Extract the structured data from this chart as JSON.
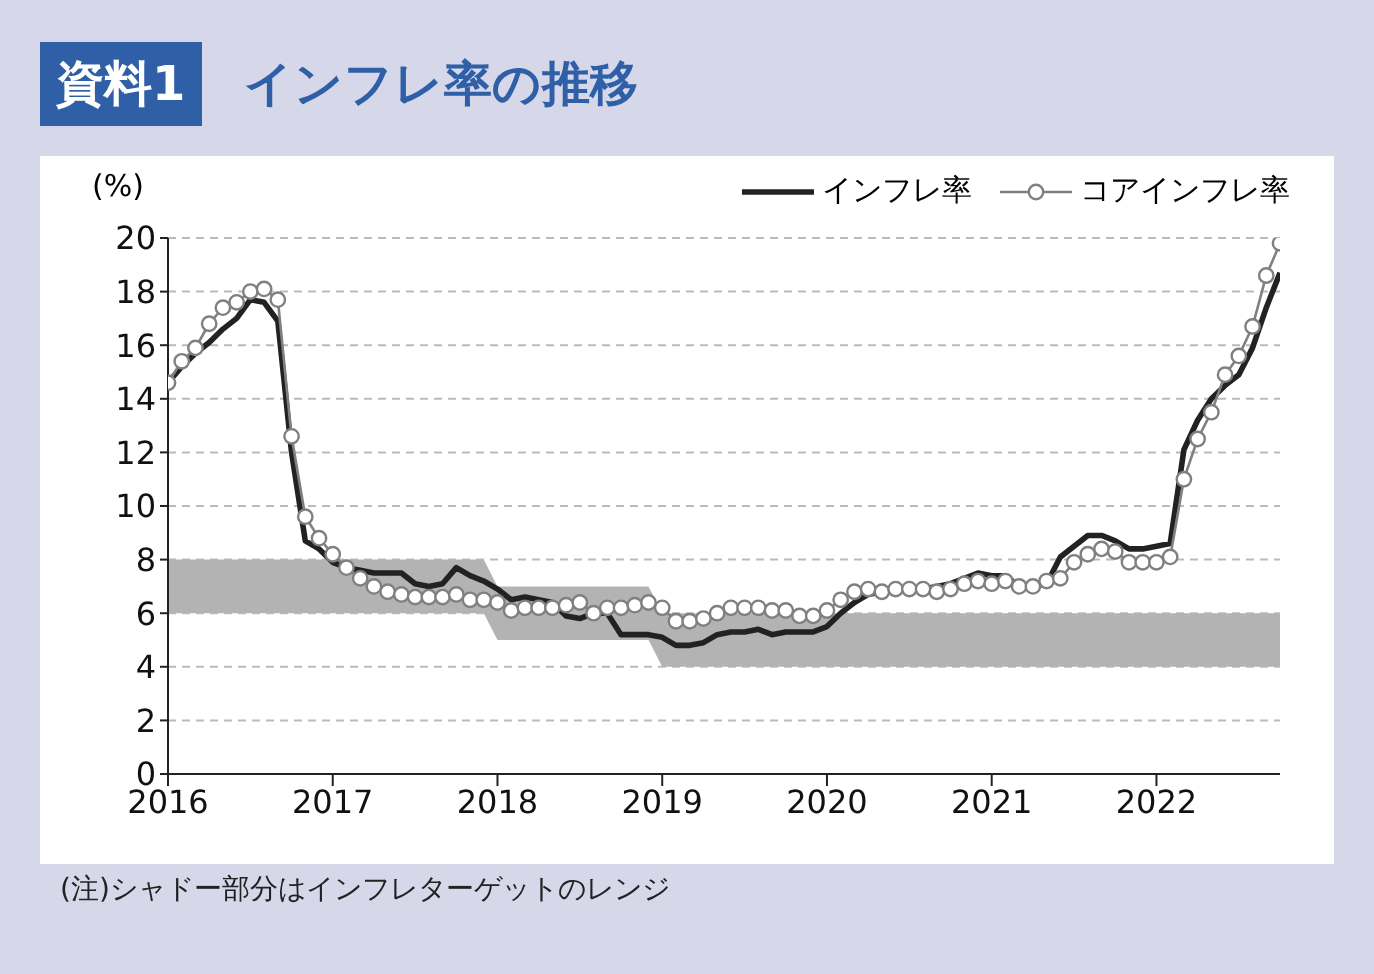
{
  "chart_data": {
    "type": "line",
    "title": "インフレ率の推移",
    "ylabel": "(%)",
    "annotations": [
      "資料1",
      "(注)シャドー部分はインフレターゲットのレンジ"
    ],
    "x": [
      "2016-01",
      "2016-02",
      "2016-03",
      "2016-04",
      "2016-05",
      "2016-06",
      "2016-07",
      "2016-08",
      "2016-09",
      "2016-10",
      "2016-11",
      "2016-12",
      "2017-01",
      "2017-02",
      "2017-03",
      "2017-04",
      "2017-05",
      "2017-06",
      "2017-07",
      "2017-08",
      "2017-09",
      "2017-10",
      "2017-11",
      "2017-12",
      "2018-01",
      "2018-02",
      "2018-03",
      "2018-04",
      "2018-05",
      "2018-06",
      "2018-07",
      "2018-08",
      "2018-09",
      "2018-10",
      "2018-11",
      "2018-12",
      "2019-01",
      "2019-02",
      "2019-03",
      "2019-04",
      "2019-05",
      "2019-06",
      "2019-07",
      "2019-08",
      "2019-09",
      "2019-10",
      "2019-11",
      "2019-12",
      "2020-01",
      "2020-02",
      "2020-03",
      "2020-04",
      "2020-05",
      "2020-06",
      "2020-07",
      "2020-08",
      "2020-09",
      "2020-10",
      "2020-11",
      "2020-12",
      "2021-01",
      "2021-02",
      "2021-03",
      "2021-04",
      "2021-05",
      "2021-06",
      "2021-07",
      "2021-08",
      "2021-09",
      "2021-10",
      "2021-11",
      "2021-12",
      "2022-01",
      "2022-02",
      "2022-03",
      "2022-04",
      "2022-05",
      "2022-06",
      "2022-07",
      "2022-08",
      "2022-09",
      "2022-10"
    ],
    "series": [
      {
        "type": "area",
        "color": "#b3b3b3",
        "values": [
          null,
          null,
          null,
          null,
          null,
          null,
          null,
          null,
          null,
          null,
          null,
          null,
          null,
          null,
          null,
          null,
          null,
          null,
          null,
          null,
          null,
          null,
          null,
          null,
          null,
          null,
          null,
          null,
          null,
          null,
          null,
          null,
          null,
          null,
          null,
          null,
          null,
          null,
          null,
          null,
          null,
          null,
          null,
          null,
          null,
          null,
          null,
          null,
          null,
          null,
          null,
          null,
          null,
          null,
          null,
          null,
          null,
          null,
          null,
          null,
          null,
          null,
          null,
          null,
          null,
          null,
          null,
          null,
          null,
          null,
          null,
          null,
          null,
          null,
          null,
          null,
          null,
          null,
          null,
          null,
          null,
          null
        ],
        "lower": [
          6,
          6,
          6,
          6,
          6,
          6,
          6,
          6,
          6,
          6,
          6,
          6,
          6,
          6,
          6,
          6,
          6,
          6,
          6,
          6,
          6,
          6,
          6,
          6,
          5,
          5,
          5,
          5,
          5,
          5,
          5,
          5,
          5,
          5,
          5,
          5,
          4,
          4,
          4,
          4,
          4,
          4,
          4,
          4,
          4,
          4,
          4,
          4,
          4,
          4,
          4,
          4,
          4,
          4,
          4,
          4,
          4,
          4,
          4,
          4,
          4,
          4,
          4,
          4,
          4,
          4,
          4,
          4,
          4,
          4,
          4,
          4,
          4,
          4,
          4,
          4,
          4,
          4,
          4,
          4,
          4,
          4
        ],
        "upper": [
          8,
          8,
          8,
          8,
          8,
          8,
          8,
          8,
          8,
          8,
          8,
          8,
          8,
          8,
          8,
          8,
          8,
          8,
          8,
          8,
          8,
          8,
          8,
          8,
          7,
          7,
          7,
          7,
          7,
          7,
          7,
          7,
          7,
          7,
          7,
          7,
          6,
          6,
          6,
          6,
          6,
          6,
          6,
          6,
          6,
          6,
          6,
          6,
          6,
          6,
          6,
          6,
          6,
          6,
          6,
          6,
          6,
          6,
          6,
          6,
          6,
          6,
          6,
          6,
          6,
          6,
          6,
          6,
          6,
          6,
          6,
          6,
          6,
          6,
          6,
          6,
          6,
          6,
          6,
          6,
          6,
          6
        ]
      },
      {
        "name": "インフレ率",
        "color": "#222222",
        "marker": "none",
        "values": [
          14.6,
          15.2,
          15.7,
          16.1,
          16.6,
          17.0,
          17.7,
          17.6,
          16.9,
          12.0,
          8.7,
          8.4,
          7.9,
          7.7,
          7.6,
          7.5,
          7.5,
          7.5,
          7.1,
          7.0,
          7.1,
          7.7,
          7.4,
          7.2,
          6.9,
          6.5,
          6.6,
          6.5,
          6.4,
          5.9,
          5.8,
          6.0,
          6.0,
          5.2,
          5.2,
          5.2,
          5.1,
          4.8,
          4.8,
          4.9,
          5.2,
          5.3,
          5.3,
          5.4,
          5.2,
          5.3,
          5.3,
          5.3,
          5.5,
          6.0,
          6.4,
          6.7,
          6.8,
          6.8,
          6.9,
          6.9,
          7.0,
          7.1,
          7.3,
          7.5,
          7.4,
          7.4,
          7.0,
          7.0,
          7.1,
          8.1,
          8.5,
          8.9,
          8.9,
          8.7,
          8.4,
          8.4,
          8.5,
          8.6,
          12.1,
          13.2,
          14.0,
          14.5,
          14.9,
          15.9,
          17.4,
          18.7
        ]
      },
      {
        "name": "コアインフレ率",
        "color": "#808080",
        "marker": "circle",
        "values": [
          14.6,
          15.4,
          15.9,
          16.8,
          17.4,
          17.6,
          18.0,
          18.1,
          17.7,
          12.6,
          9.6,
          8.8,
          8.2,
          7.7,
          7.3,
          7.0,
          6.8,
          6.7,
          6.6,
          6.6,
          6.6,
          6.7,
          6.5,
          6.5,
          6.4,
          6.1,
          6.2,
          6.2,
          6.2,
          6.3,
          6.4,
          6.0,
          6.2,
          6.2,
          6.3,
          6.4,
          6.2,
          5.7,
          5.7,
          5.8,
          6.0,
          6.2,
          6.2,
          6.2,
          6.1,
          6.1,
          5.9,
          5.9,
          6.1,
          6.5,
          6.8,
          6.9,
          6.8,
          6.9,
          6.9,
          6.9,
          6.8,
          6.9,
          7.1,
          7.2,
          7.1,
          7.2,
          7.0,
          7.0,
          7.2,
          7.3,
          7.9,
          8.2,
          8.4,
          8.3,
          7.9,
          7.9,
          7.9,
          8.1,
          11.0,
          12.5,
          13.5,
          14.9,
          15.6,
          16.7,
          18.6,
          19.8
        ]
      }
    ],
    "xlim": [
      "2016-01",
      "2022-10"
    ],
    "xticks": [
      "2016",
      "2017",
      "2018",
      "2019",
      "2020",
      "2021",
      "2022"
    ],
    "ylim": [
      0,
      20
    ],
    "yticks": [
      0,
      2,
      4,
      6,
      8,
      10,
      12,
      14,
      16,
      18,
      20
    ],
    "grid": "y",
    "legend": "top right"
  }
}
